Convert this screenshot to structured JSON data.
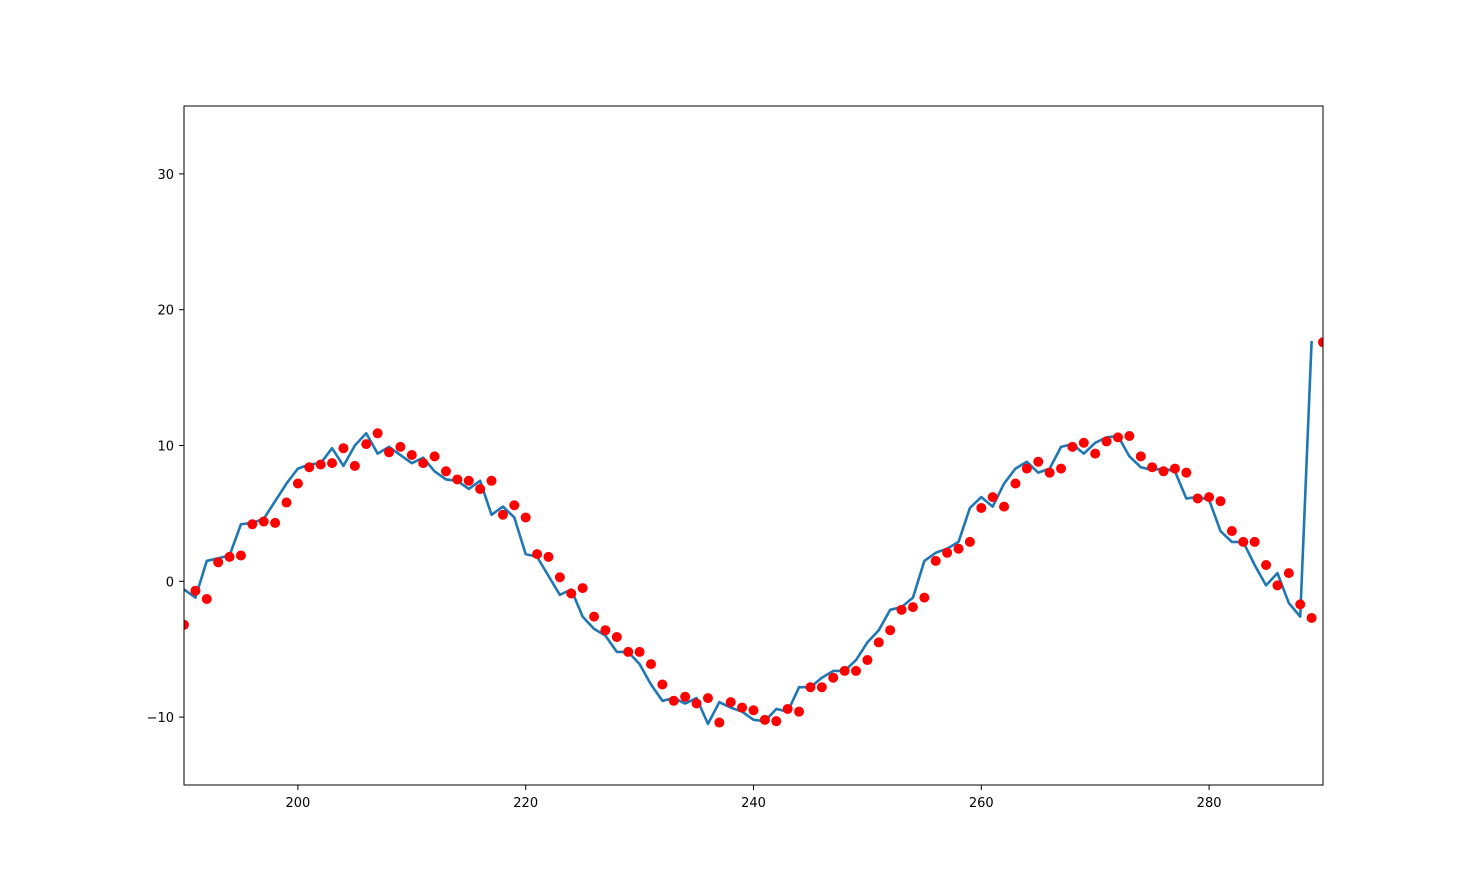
{
  "chart_data": {
    "type": "line",
    "title": "",
    "xlabel": "",
    "ylabel": "",
    "xlim": [
      190,
      290
    ],
    "ylim": [
      -15,
      35
    ],
    "xticks": [
      200,
      220,
      240,
      260,
      280
    ],
    "yticks": [
      -10,
      0,
      10,
      20,
      30
    ],
    "xtick_labels": [
      "200",
      "220",
      "240",
      "260",
      "280"
    ],
    "ytick_labels": [
      "−10",
      "0",
      "10",
      "20",
      "30"
    ],
    "grid": false,
    "legend": "none",
    "series": [
      {
        "style": "line",
        "color": "#1f77b4",
        "x": [
          190,
          191,
          192,
          193,
          194,
          195,
          196,
          197,
          198,
          199,
          200,
          201,
          202,
          203,
          204,
          205,
          206,
          207,
          208,
          209,
          210,
          211,
          212,
          213,
          214,
          215,
          216,
          217,
          218,
          219,
          220,
          221,
          222,
          223,
          224,
          225,
          226,
          227,
          228,
          229,
          230,
          231,
          232,
          233,
          234,
          235,
          236,
          237,
          238,
          239,
          240,
          241,
          242,
          243,
          244,
          245,
          246,
          247,
          248,
          249,
          250,
          251,
          252,
          253,
          254,
          255,
          256,
          257,
          258,
          259,
          260,
          261,
          262,
          263,
          264,
          265,
          266,
          267,
          268,
          269,
          270,
          271,
          272,
          273,
          274,
          275,
          276,
          277,
          278,
          279,
          280,
          281,
          282,
          283,
          284,
          285,
          286,
          287,
          288,
          289
        ],
        "y": [
          -0.6,
          -1.2,
          1.5,
          1.7,
          1.9,
          4.2,
          4.3,
          4.6,
          5.9,
          7.2,
          8.3,
          8.6,
          8.7,
          9.8,
          8.5,
          10.0,
          10.9,
          9.4,
          9.9,
          9.3,
          8.7,
          9.1,
          8.1,
          7.5,
          7.4,
          6.8,
          7.4,
          4.9,
          5.5,
          4.7,
          2.0,
          1.8,
          0.4,
          -1.0,
          -0.6,
          -2.6,
          -3.5,
          -4.0,
          -5.2,
          -5.2,
          -6.1,
          -7.6,
          -8.8,
          -8.6,
          -9.0,
          -8.6,
          -10.5,
          -8.9,
          -9.3,
          -9.6,
          -10.2,
          -10.3,
          -9.4,
          -9.6,
          -7.8,
          -7.8,
          -7.1,
          -6.6,
          -6.6,
          -5.8,
          -4.5,
          -3.6,
          -2.1,
          -1.9,
          -1.2,
          1.5,
          2.1,
          2.4,
          2.9,
          5.4,
          6.2,
          5.5,
          7.2,
          8.3,
          8.8,
          8.0,
          8.3,
          9.9,
          10.1,
          9.4,
          10.2,
          10.6,
          10.7,
          9.2,
          8.4,
          8.2,
          8.3,
          8.1,
          6.1,
          6.2,
          6.0,
          3.7,
          2.9,
          2.9,
          1.2,
          -0.3,
          0.6,
          -1.6,
          -2.6,
          17.7
        ]
      },
      {
        "style": "scatter",
        "color": "#ff0000",
        "x": [
          190,
          191,
          192,
          193,
          194,
          195,
          196,
          197,
          198,
          199,
          200,
          201,
          202,
          203,
          204,
          205,
          206,
          207,
          208,
          209,
          210,
          211,
          212,
          213,
          214,
          215,
          216,
          217,
          218,
          219,
          220,
          221,
          222,
          223,
          224,
          225,
          226,
          227,
          228,
          229,
          230,
          231,
          232,
          233,
          234,
          235,
          236,
          237,
          238,
          239,
          240,
          241,
          242,
          243,
          244,
          245,
          246,
          247,
          248,
          249,
          250,
          251,
          252,
          253,
          254,
          255,
          256,
          257,
          258,
          259,
          260,
          261,
          262,
          263,
          264,
          265,
          266,
          267,
          268,
          269,
          270,
          271,
          272,
          273,
          274,
          275,
          276,
          277,
          278,
          279,
          280,
          281,
          282,
          283,
          284,
          285,
          286,
          287,
          288,
          289,
          290
        ],
        "y": [
          -3.2,
          -0.7,
          -1.3,
          1.4,
          1.8,
          1.9,
          4.2,
          4.4,
          4.3,
          5.8,
          7.2,
          8.4,
          8.6,
          8.7,
          9.8,
          8.5,
          10.1,
          10.9,
          9.5,
          9.9,
          9.3,
          8.7,
          9.2,
          8.1,
          7.5,
          7.4,
          6.8,
          7.4,
          4.9,
          5.6,
          4.7,
          2.0,
          1.8,
          0.3,
          -0.9,
          -0.5,
          -2.6,
          -3.6,
          -4.1,
          -5.2,
          -5.2,
          -6.1,
          -7.6,
          -8.8,
          -8.5,
          -9.0,
          -8.6,
          -10.4,
          -8.9,
          -9.3,
          -9.5,
          -10.2,
          -10.3,
          -9.4,
          -9.6,
          -7.8,
          -7.8,
          -7.1,
          -6.6,
          -6.6,
          -5.8,
          -4.5,
          -3.6,
          -2.1,
          -1.9,
          -1.2,
          1.5,
          2.1,
          2.4,
          2.9,
          5.4,
          6.2,
          5.5,
          7.2,
          8.3,
          8.8,
          8.0,
          8.3,
          9.9,
          10.2,
          9.4,
          10.3,
          10.6,
          10.7,
          9.2,
          8.4,
          8.1,
          8.3,
          8.0,
          6.1,
          6.2,
          5.9,
          3.7,
          2.9,
          2.9,
          1.2,
          -0.3,
          0.6,
          -1.7,
          -2.7,
          17.6
        ]
      }
    ]
  }
}
